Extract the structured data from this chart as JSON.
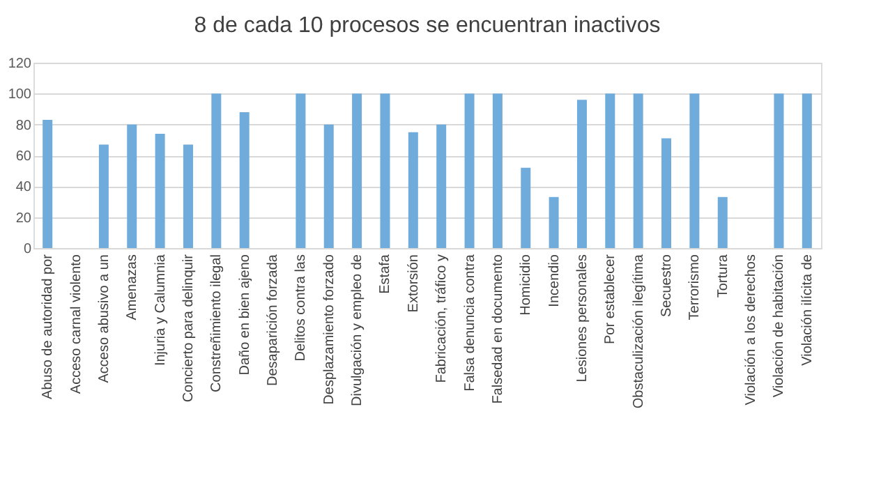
{
  "chart_data": {
    "type": "bar",
    "title": "8 de cada 10 procesos se encuentran inactivos",
    "categories": [
      "Abuso de autoridad por",
      "Acceso carnal violento",
      "Acceso abusivo a un",
      "Amenazas",
      "Injuria y Calumnia",
      "Concierto para delinquir",
      "Constreñimiento ilegal",
      "Daño en bien ajeno",
      "Desaparición forzada",
      "Delitos contra las",
      "Desplazamiento forzado",
      "Divulgación y empleo de",
      "Estafa",
      "Extorsión",
      "Fabricación, tráfico y",
      "Falsa denuncia contra",
      "Falsedad en documento",
      "Homicidio",
      "Incendio",
      "Lesiones personales",
      "Por establecer",
      "Obstaculización ilegítima",
      "Secuestro",
      "Terrorismo",
      "Tortura",
      "Violación a los derechos",
      "Violación de habitación",
      "Violación ilícita de"
    ],
    "values": [
      83,
      0,
      67,
      80,
      74,
      67,
      100,
      88,
      0,
      100,
      80,
      100,
      100,
      75,
      80,
      100,
      100,
      52,
      33,
      96,
      100,
      100,
      71,
      100,
      33,
      0,
      100,
      100
    ],
    "color": "#6fabdb",
    "ylim": [
      0,
      120
    ],
    "yticks": [
      0,
      20,
      40,
      60,
      80,
      100,
      120
    ],
    "grid": "y"
  }
}
